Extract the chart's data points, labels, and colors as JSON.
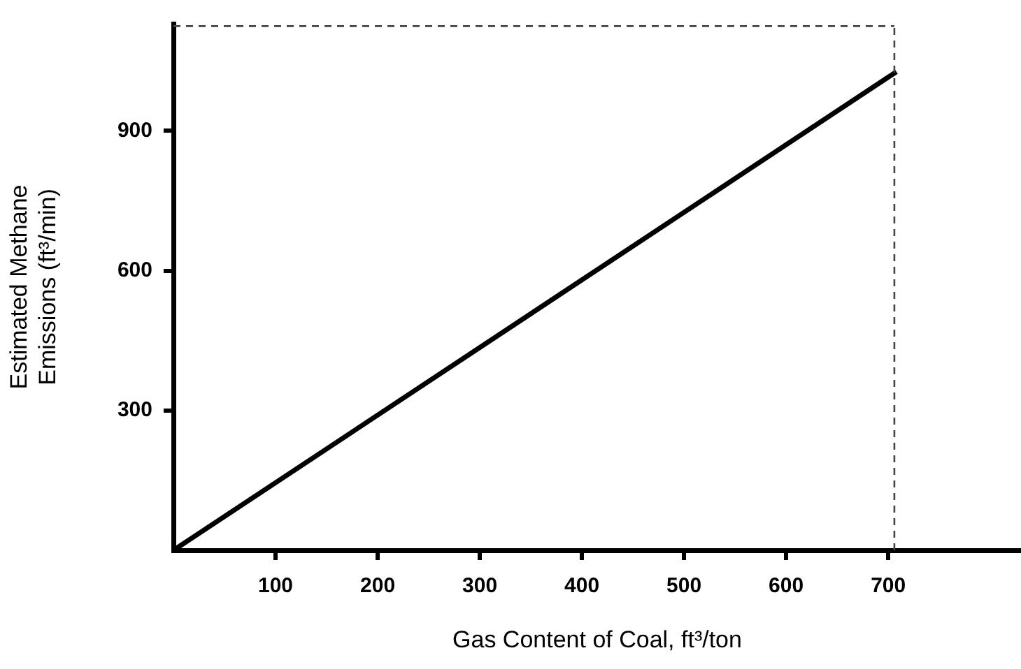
{
  "chart_data": {
    "type": "line",
    "xlabel": "Gas Content of Coal, ft³/ton",
    "ylabel": "Estimated Methane\nEmissions (ft³/min)",
    "x": [
      0,
      708
    ],
    "series": [
      {
        "color": "#000000",
        "values": [
          0,
          1027
        ]
      }
    ],
    "xlim": [
      0,
      830
    ],
    "xticks": [
      100,
      200,
      300,
      400,
      500,
      600,
      700
    ],
    "ylim": [
      0,
      1130
    ],
    "yticks": [
      300,
      600,
      900
    ],
    "ref_lines": [
      {
        "axis": "x",
        "value": 706,
        "line_style": "dashed",
        "color": "#444444"
      },
      {
        "axis": "y",
        "value": 1125,
        "line_style": "dashed",
        "color": "#444444"
      }
    ],
    "grid": false,
    "legend": false,
    "marker": "none",
    "line_style": "solid"
  }
}
